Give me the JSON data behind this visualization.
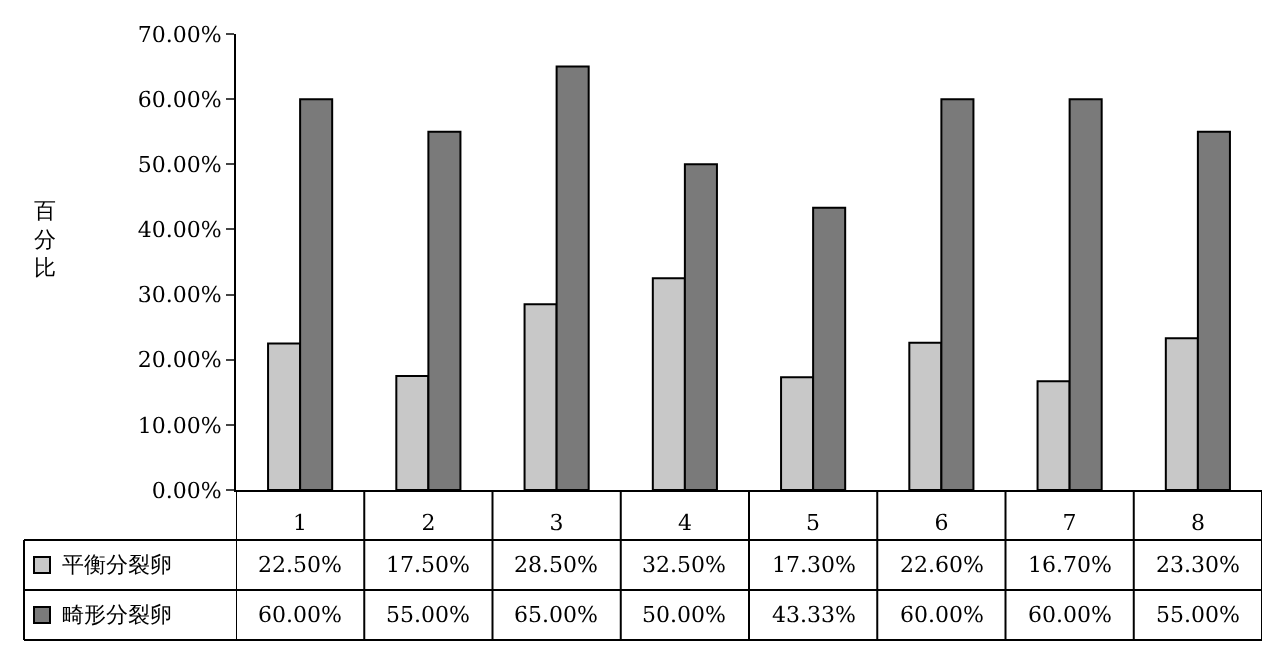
{
  "chart_data": {
    "type": "bar",
    "ylabel": "百分比",
    "categories": [
      "1",
      "2",
      "3",
      "4",
      "5",
      "6",
      "7",
      "8"
    ],
    "series": [
      {
        "name": "平衡分裂卵",
        "color": "#c8c8c8",
        "values": [
          22.5,
          17.5,
          28.5,
          32.5,
          17.3,
          22.6,
          16.7,
          23.3
        ],
        "value_labels": [
          "22.50%",
          "17.50%",
          "28.50%",
          "32.50%",
          "17.30%",
          "22.60%",
          "16.70%",
          "23.30%"
        ]
      },
      {
        "name": "畸形分裂卵",
        "color": "#7a7a7a",
        "values": [
          60,
          55,
          65,
          50,
          43.33,
          60,
          60,
          55
        ],
        "value_labels": [
          "60.00%",
          "55.00%",
          "65.00%",
          "50.00%",
          "43.33%",
          "60.00%",
          "60.00%",
          "55.00%"
        ]
      }
    ],
    "ylim": [
      0,
      70
    ],
    "yticks": [
      {
        "value": 0,
        "label": "0.00%"
      },
      {
        "value": 10,
        "label": "10.00%"
      },
      {
        "value": 20,
        "label": "20.00%"
      },
      {
        "value": 30,
        "label": "30.00%"
      },
      {
        "value": 40,
        "label": "40.00%"
      },
      {
        "value": 50,
        "label": "50.00%"
      },
      {
        "value": 60,
        "label": "60.00%"
      },
      {
        "value": 70,
        "label": "70.00%"
      }
    ],
    "legend": "bottom"
  }
}
